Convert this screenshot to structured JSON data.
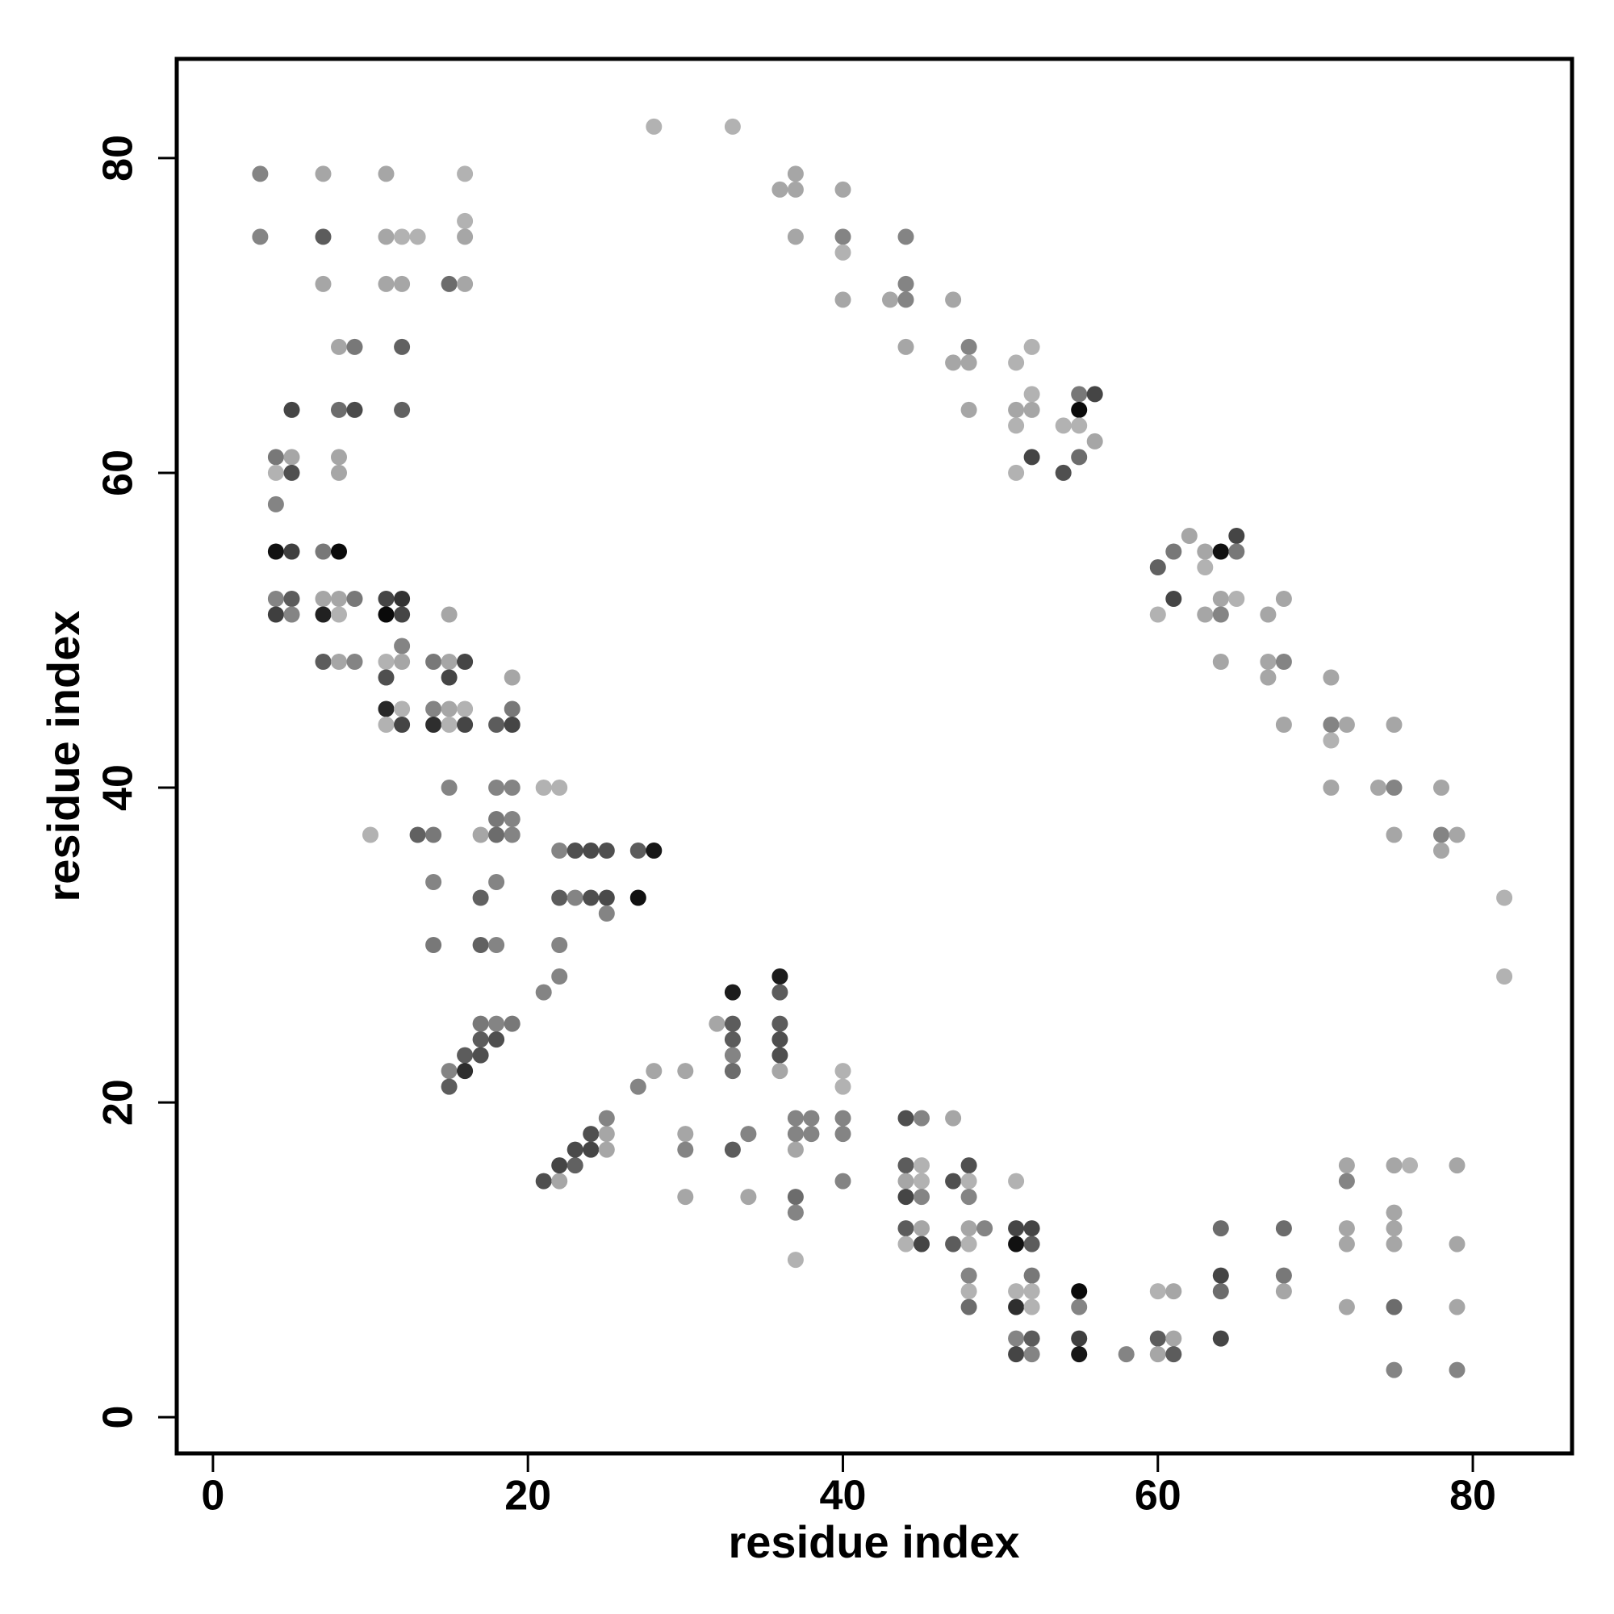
{
  "chart_data": {
    "type": "scatter",
    "title": "",
    "xlabel": "residue index",
    "ylabel": "residue index",
    "xlim": [
      -2.3,
      86.3
    ],
    "ylim": [
      -2.3,
      86.3
    ],
    "xticks": [
      0,
      20,
      40,
      60,
      80
    ],
    "yticks": [
      0,
      20,
      40,
      60,
      80
    ],
    "grid": false,
    "legend": "none",
    "color_scale": "grayscale: darker = stronger contact",
    "points": [
      [
        3,
        79,
        0.45
      ],
      [
        3,
        75,
        0.45
      ],
      [
        7,
        79,
        0.3
      ],
      [
        11,
        79,
        0.3
      ],
      [
        16,
        79,
        0.25
      ],
      [
        7,
        75,
        0.62
      ],
      [
        11,
        75,
        0.3
      ],
      [
        12,
        75,
        0.25
      ],
      [
        13,
        75,
        0.25
      ],
      [
        16,
        76,
        0.25
      ],
      [
        16,
        75,
        0.3
      ],
      [
        7,
        72,
        0.3
      ],
      [
        11,
        72,
        0.3
      ],
      [
        12,
        72,
        0.3
      ],
      [
        15,
        72,
        0.55
      ],
      [
        16,
        72,
        0.3
      ],
      [
        8,
        68,
        0.3
      ],
      [
        9,
        68,
        0.5
      ],
      [
        12,
        68,
        0.6
      ],
      [
        5,
        64,
        0.72
      ],
      [
        8,
        64,
        0.55
      ],
      [
        9,
        64,
        0.7
      ],
      [
        12,
        64,
        0.6
      ],
      [
        4,
        61,
        0.5
      ],
      [
        5,
        61,
        0.3
      ],
      [
        8,
        61,
        0.3
      ],
      [
        4,
        60,
        0.25
      ],
      [
        5,
        60,
        0.68
      ],
      [
        8,
        60,
        0.3
      ],
      [
        4,
        58,
        0.45
      ],
      [
        4,
        55,
        0.95
      ],
      [
        5,
        55,
        0.75
      ],
      [
        7,
        55,
        0.5
      ],
      [
        8,
        55,
        0.98
      ],
      [
        4,
        52,
        0.45
      ],
      [
        5,
        52,
        0.62
      ],
      [
        7,
        52,
        0.3
      ],
      [
        8,
        52,
        0.3
      ],
      [
        9,
        52,
        0.5
      ],
      [
        11,
        52,
        0.72
      ],
      [
        12,
        52,
        0.8
      ],
      [
        4,
        51,
        0.75
      ],
      [
        5,
        51,
        0.45
      ],
      [
        7,
        51,
        0.88
      ],
      [
        8,
        51,
        0.25
      ],
      [
        11,
        51,
        0.98
      ],
      [
        12,
        51,
        0.72
      ],
      [
        15,
        51,
        0.3
      ],
      [
        12,
        49,
        0.45
      ],
      [
        7,
        48,
        0.62
      ],
      [
        8,
        48,
        0.3
      ],
      [
        9,
        48,
        0.45
      ],
      [
        11,
        48,
        0.25
      ],
      [
        12,
        48,
        0.3
      ],
      [
        14,
        48,
        0.5
      ],
      [
        15,
        48,
        0.3
      ],
      [
        16,
        48,
        0.72
      ],
      [
        11,
        47,
        0.68
      ],
      [
        15,
        47,
        0.72
      ],
      [
        19,
        47,
        0.3
      ],
      [
        11,
        45,
        0.85
      ],
      [
        12,
        45,
        0.25
      ],
      [
        14,
        45,
        0.45
      ],
      [
        15,
        45,
        0.3
      ],
      [
        16,
        45,
        0.25
      ],
      [
        19,
        45,
        0.5
      ],
      [
        11,
        44,
        0.25
      ],
      [
        12,
        44,
        0.72
      ],
      [
        14,
        44,
        0.82
      ],
      [
        15,
        44,
        0.25
      ],
      [
        16,
        44,
        0.72
      ],
      [
        18,
        44,
        0.62
      ],
      [
        19,
        44,
        0.72
      ],
      [
        15,
        40,
        0.45
      ],
      [
        18,
        40,
        0.45
      ],
      [
        19,
        40,
        0.45
      ],
      [
        18,
        38,
        0.5
      ],
      [
        19,
        38,
        0.45
      ],
      [
        10,
        37,
        0.25
      ],
      [
        13,
        37,
        0.6
      ],
      [
        14,
        37,
        0.5
      ],
      [
        17,
        37,
        0.3
      ],
      [
        18,
        37,
        0.55
      ],
      [
        19,
        37,
        0.45
      ],
      [
        21,
        40,
        0.25
      ],
      [
        22,
        40,
        0.25
      ],
      [
        22,
        36,
        0.45
      ],
      [
        23,
        36,
        0.68
      ],
      [
        24,
        36,
        0.7
      ],
      [
        25,
        36,
        0.68
      ],
      [
        27,
        36,
        0.62
      ],
      [
        28,
        36,
        0.92
      ],
      [
        14,
        34,
        0.45
      ],
      [
        18,
        34,
        0.45
      ],
      [
        17,
        33,
        0.6
      ],
      [
        22,
        33,
        0.62
      ],
      [
        23,
        33,
        0.45
      ],
      [
        24,
        33,
        0.68
      ],
      [
        25,
        33,
        0.7
      ],
      [
        27,
        33,
        0.95
      ],
      [
        25,
        32,
        0.45
      ],
      [
        14,
        30,
        0.5
      ],
      [
        17,
        30,
        0.6
      ],
      [
        18,
        30,
        0.45
      ],
      [
        22,
        30,
        0.45
      ],
      [
        22,
        28,
        0.45
      ],
      [
        21,
        27,
        0.45
      ],
      [
        17,
        25,
        0.5
      ],
      [
        18,
        25,
        0.45
      ],
      [
        19,
        25,
        0.5
      ],
      [
        17,
        24,
        0.62
      ],
      [
        18,
        24,
        0.68
      ],
      [
        16,
        23,
        0.62
      ],
      [
        17,
        23,
        0.68
      ],
      [
        15,
        22,
        0.45
      ],
      [
        16,
        22,
        0.82
      ],
      [
        15,
        21,
        0.62
      ],
      [
        28,
        82,
        0.25
      ],
      [
        33,
        82,
        0.25
      ],
      [
        37,
        79,
        0.3
      ],
      [
        36,
        78,
        0.3
      ],
      [
        37,
        78,
        0.3
      ],
      [
        40,
        78,
        0.3
      ],
      [
        37,
        75,
        0.3
      ],
      [
        40,
        75,
        0.45
      ],
      [
        44,
        75,
        0.45
      ],
      [
        40,
        74,
        0.25
      ],
      [
        44,
        72,
        0.45
      ],
      [
        40,
        71,
        0.3
      ],
      [
        43,
        71,
        0.3
      ],
      [
        44,
        71,
        0.45
      ],
      [
        47,
        71,
        0.3
      ],
      [
        44,
        68,
        0.3
      ],
      [
        48,
        68,
        0.45
      ],
      [
        52,
        68,
        0.25
      ],
      [
        47,
        67,
        0.3
      ],
      [
        48,
        67,
        0.3
      ],
      [
        51,
        67,
        0.25
      ],
      [
        52,
        65,
        0.25
      ],
      [
        55,
        65,
        0.5
      ],
      [
        56,
        65,
        0.72
      ],
      [
        48,
        64,
        0.3
      ],
      [
        51,
        64,
        0.3
      ],
      [
        52,
        64,
        0.3
      ],
      [
        55,
        64,
        0.98
      ],
      [
        51,
        63,
        0.25
      ],
      [
        54,
        63,
        0.25
      ],
      [
        55,
        63,
        0.25
      ],
      [
        56,
        62,
        0.3
      ],
      [
        52,
        61,
        0.72
      ],
      [
        55,
        61,
        0.55
      ],
      [
        51,
        60,
        0.25
      ],
      [
        54,
        60,
        0.68
      ],
      [
        62,
        56,
        0.3
      ],
      [
        65,
        56,
        0.72
      ],
      [
        61,
        55,
        0.5
      ],
      [
        63,
        55,
        0.3
      ],
      [
        64,
        55,
        0.95
      ],
      [
        65,
        55,
        0.5
      ],
      [
        60,
        54,
        0.6
      ],
      [
        63,
        54,
        0.25
      ],
      [
        61,
        52,
        0.72
      ],
      [
        64,
        52,
        0.3
      ],
      [
        65,
        52,
        0.25
      ],
      [
        68,
        52,
        0.3
      ],
      [
        60,
        51,
        0.25
      ],
      [
        63,
        51,
        0.3
      ],
      [
        64,
        51,
        0.45
      ],
      [
        67,
        51,
        0.3
      ],
      [
        64,
        48,
        0.3
      ],
      [
        67,
        48,
        0.3
      ],
      [
        68,
        48,
        0.45
      ],
      [
        67,
        47,
        0.3
      ],
      [
        71,
        47,
        0.3
      ],
      [
        68,
        44,
        0.3
      ],
      [
        71,
        44,
        0.45
      ],
      [
        72,
        44,
        0.3
      ],
      [
        75,
        44,
        0.3
      ],
      [
        71,
        43,
        0.25
      ],
      [
        71,
        40,
        0.3
      ],
      [
        74,
        40,
        0.3
      ],
      [
        75,
        40,
        0.45
      ],
      [
        78,
        40,
        0.3
      ],
      [
        75,
        37,
        0.3
      ],
      [
        78,
        37,
        0.45
      ],
      [
        79,
        37,
        0.3
      ],
      [
        78,
        36,
        0.3
      ],
      [
        82,
        33,
        0.25
      ],
      [
        82,
        28,
        0.25
      ],
      [
        21,
        15,
        0.68
      ],
      [
        22,
        15,
        0.3
      ],
      [
        22,
        16,
        0.72
      ],
      [
        23,
        16,
        0.6
      ],
      [
        23,
        17,
        0.7
      ],
      [
        24,
        17,
        0.72
      ],
      [
        25,
        17,
        0.3
      ],
      [
        24,
        18,
        0.68
      ],
      [
        25,
        18,
        0.3
      ],
      [
        25,
        19,
        0.45
      ],
      [
        27,
        21,
        0.45
      ],
      [
        28,
        22,
        0.3
      ],
      [
        30,
        22,
        0.3
      ],
      [
        30,
        18,
        0.3
      ],
      [
        30,
        17,
        0.45
      ],
      [
        30,
        14,
        0.3
      ],
      [
        32,
        25,
        0.3
      ],
      [
        33,
        25,
        0.62
      ],
      [
        33,
        27,
        0.9
      ],
      [
        33,
        24,
        0.62
      ],
      [
        33,
        23,
        0.45
      ],
      [
        33,
        22,
        0.55
      ],
      [
        33,
        17,
        0.62
      ],
      [
        34,
        18,
        0.45
      ],
      [
        34,
        14,
        0.3
      ],
      [
        36,
        28,
        0.9
      ],
      [
        36,
        27,
        0.62
      ],
      [
        36,
        25,
        0.62
      ],
      [
        36,
        24,
        0.68
      ],
      [
        36,
        23,
        0.68
      ],
      [
        36,
        22,
        0.3
      ],
      [
        37,
        19,
        0.45
      ],
      [
        38,
        19,
        0.45
      ],
      [
        37,
        18,
        0.45
      ],
      [
        38,
        18,
        0.45
      ],
      [
        37,
        17,
        0.3
      ],
      [
        37,
        14,
        0.55
      ],
      [
        37,
        13,
        0.45
      ],
      [
        37,
        10,
        0.25
      ],
      [
        40,
        22,
        0.25
      ],
      [
        40,
        21,
        0.25
      ],
      [
        40,
        19,
        0.45
      ],
      [
        40,
        18,
        0.45
      ],
      [
        40,
        15,
        0.45
      ],
      [
        44,
        19,
        0.68
      ],
      [
        45,
        19,
        0.45
      ],
      [
        47,
        19,
        0.3
      ],
      [
        44,
        16,
        0.62
      ],
      [
        45,
        16,
        0.25
      ],
      [
        48,
        16,
        0.68
      ],
      [
        44,
        15,
        0.3
      ],
      [
        45,
        15,
        0.25
      ],
      [
        47,
        15,
        0.68
      ],
      [
        48,
        15,
        0.25
      ],
      [
        51,
        15,
        0.25
      ],
      [
        44,
        14,
        0.72
      ],
      [
        45,
        14,
        0.45
      ],
      [
        48,
        14,
        0.45
      ],
      [
        44,
        12,
        0.62
      ],
      [
        45,
        12,
        0.3
      ],
      [
        48,
        12,
        0.3
      ],
      [
        49,
        12,
        0.45
      ],
      [
        51,
        12,
        0.72
      ],
      [
        52,
        12,
        0.72
      ],
      [
        44,
        11,
        0.25
      ],
      [
        45,
        11,
        0.72
      ],
      [
        47,
        11,
        0.62
      ],
      [
        48,
        11,
        0.25
      ],
      [
        51,
        11,
        0.95
      ],
      [
        52,
        11,
        0.62
      ],
      [
        48,
        9,
        0.45
      ],
      [
        52,
        9,
        0.5
      ],
      [
        48,
        8,
        0.25
      ],
      [
        51,
        8,
        0.25
      ],
      [
        52,
        8,
        0.25
      ],
      [
        55,
        8,
        0.98
      ],
      [
        48,
        7,
        0.55
      ],
      [
        51,
        7,
        0.82
      ],
      [
        52,
        7,
        0.25
      ],
      [
        55,
        7,
        0.45
      ],
      [
        51,
        5,
        0.45
      ],
      [
        52,
        5,
        0.62
      ],
      [
        55,
        5,
        0.75
      ],
      [
        51,
        4,
        0.72
      ],
      [
        52,
        4,
        0.45
      ],
      [
        55,
        4,
        0.92
      ],
      [
        58,
        4,
        0.45
      ],
      [
        60,
        8,
        0.25
      ],
      [
        61,
        8,
        0.3
      ],
      [
        60,
        5,
        0.62
      ],
      [
        61,
        5,
        0.3
      ],
      [
        60,
        4,
        0.3
      ],
      [
        61,
        4,
        0.62
      ],
      [
        64,
        12,
        0.55
      ],
      [
        64,
        9,
        0.72
      ],
      [
        64,
        8,
        0.55
      ],
      [
        64,
        5,
        0.72
      ],
      [
        68,
        12,
        0.55
      ],
      [
        68,
        9,
        0.5
      ],
      [
        68,
        8,
        0.3
      ],
      [
        72,
        16,
        0.3
      ],
      [
        72,
        15,
        0.45
      ],
      [
        72,
        12,
        0.3
      ],
      [
        72,
        11,
        0.3
      ],
      [
        72,
        7,
        0.3
      ],
      [
        75,
        16,
        0.3
      ],
      [
        76,
        16,
        0.25
      ],
      [
        75,
        13,
        0.3
      ],
      [
        75,
        12,
        0.3
      ],
      [
        75,
        11,
        0.3
      ],
      [
        75,
        7,
        0.55
      ],
      [
        75,
        3,
        0.45
      ],
      [
        79,
        16,
        0.3
      ],
      [
        79,
        11,
        0.3
      ],
      [
        79,
        7,
        0.3
      ],
      [
        79,
        3,
        0.45
      ]
    ]
  }
}
